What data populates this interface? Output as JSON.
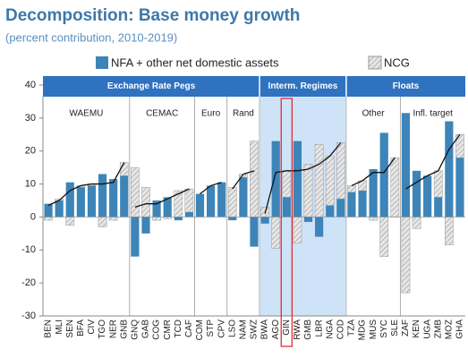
{
  "chart_data": {
    "type": "bar",
    "title": "Decomposition: Base money growth",
    "subtitle": "(percent contribution, 2010-2019)",
    "ylim": [
      -30,
      40
    ],
    "yticks": [
      -30,
      -20,
      -10,
      0,
      10,
      20,
      30,
      40
    ],
    "grid": false,
    "highlight": "GIN",
    "regimes": [
      {
        "label": "Exchange Rate Pegs",
        "background": "#ffffff",
        "subgroups": [
          {
            "label": "WAEMU",
            "categories": [
              "BEN",
              "MLI",
              "SEN",
              "BFA",
              "CIV",
              "TGO",
              "NER",
              "GNB"
            ]
          },
          {
            "label": "CEMAC",
            "categories": [
              "GNQ",
              "GAB",
              "COG",
              "CMR",
              "TCD",
              "CAF"
            ]
          },
          {
            "label": "Euro",
            "categories": [
              "COM",
              "STP",
              "CPV"
            ]
          },
          {
            "label": "Rand",
            "categories": [
              "LSO",
              "NAM",
              "SWZ"
            ]
          }
        ]
      },
      {
        "label": "Interm. Regimes",
        "background": "#cfe3f8",
        "subgroups": [
          {
            "categories": [
              "BWA",
              "AGO",
              "GIN",
              "RWA",
              "GMB",
              "LBR",
              "NGA",
              "COD"
            ]
          }
        ]
      },
      {
        "label": "Floats",
        "background": "#ffffff",
        "subgroups": [
          {
            "label": "Other",
            "categories": [
              "TZA",
              "MDG",
              "MUS",
              "SYC",
              "SLE"
            ]
          },
          {
            "label": "Infl. target",
            "categories": [
              "ZAF",
              "KEN",
              "UGA",
              "ZMB",
              "MOZ",
              "GHA"
            ]
          }
        ]
      }
    ],
    "series": [
      {
        "name": "NFA + other net domestic assets",
        "color": "#3d84b8",
        "pattern": "solid",
        "values": [
          4,
          5,
          10.5,
          9,
          9.5,
          13,
          11.5,
          12.5,
          -12,
          -5,
          5,
          6,
          -1,
          1.5,
          7,
          9.5,
          10.5,
          -1,
          12,
          -9,
          -2,
          23,
          6,
          23,
          -1.5,
          -6,
          3.5,
          5.5,
          7.5,
          8,
          14.5,
          25.5,
          0,
          31.5,
          14,
          12.5,
          6,
          29,
          18
        ]
      },
      {
        "name": "NCG",
        "color": "#c8c8c8",
        "pattern": "hatch",
        "values": [
          -1,
          0.5,
          -2.5,
          0.5,
          0.5,
          -3,
          -1,
          4,
          15,
          9,
          -1,
          -0.5,
          8,
          7,
          0,
          0,
          0,
          9,
          1,
          23,
          3,
          -9.5,
          8,
          -8,
          16,
          22,
          15,
          17,
          2,
          3,
          -1,
          -12,
          18,
          -23,
          -3.5,
          0,
          8,
          -8.5,
          7
        ]
      }
    ],
    "total": [
      3.5,
      5,
      8,
      9.5,
      10,
      10,
      10.5,
      16.5,
      3,
      4,
      4,
      5.5,
      7,
      8.5,
      7,
      9.5,
      10.5,
      8.5,
      13,
      14,
      1,
      13.5,
      14,
      14,
      14.5,
      16,
      18.5,
      22.5,
      9.5,
      11,
      13.5,
      13.5,
      18,
      8.5,
      10.5,
      12.5,
      14,
      20.5,
      25
    ]
  }
}
